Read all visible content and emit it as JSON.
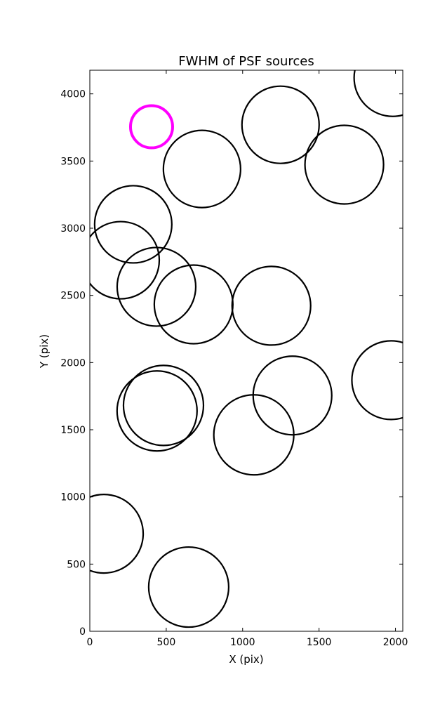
{
  "chart_data": {
    "type": "scatter",
    "title": "FWHM of PSF sources",
    "x_label": "X (pix)",
    "y_label": "Y (pix)",
    "x": [
      1982,
      1248,
      1665,
      404,
      734,
      284,
      202,
      436,
      679,
      1188,
      1972,
      1326,
      482,
      440,
      1073,
      92,
      647
    ],
    "y": [
      4120,
      3770,
      3473,
      3755,
      3441,
      3029,
      2762,
      2564,
      2433,
      2423,
      1869,
      1755,
      1681,
      1640,
      1462,
      726,
      329
    ],
    "sizes": [
      55,
      55,
      56,
      30,
      55,
      55,
      55,
      56,
      56,
      56,
      56,
      56,
      57,
      57,
      57,
      56,
      57
    ],
    "colors": [
      "#000000",
      "#000000",
      "#000000",
      "#ff00ff",
      "#000000",
      "#000000",
      "#000000",
      "#000000",
      "#000000",
      "#000000",
      "#000000",
      "#000000",
      "#000000",
      "#000000",
      "#000000",
      "#000000",
      "#000000"
    ],
    "xlim": [
      0,
      2048
    ],
    "ylim": [
      0,
      4176
    ],
    "xticks": [
      0,
      500,
      1000,
      1500,
      2000
    ],
    "yticks": [
      0,
      500,
      1000,
      1500,
      2000,
      2500,
      3000,
      3500,
      4000
    ]
  }
}
